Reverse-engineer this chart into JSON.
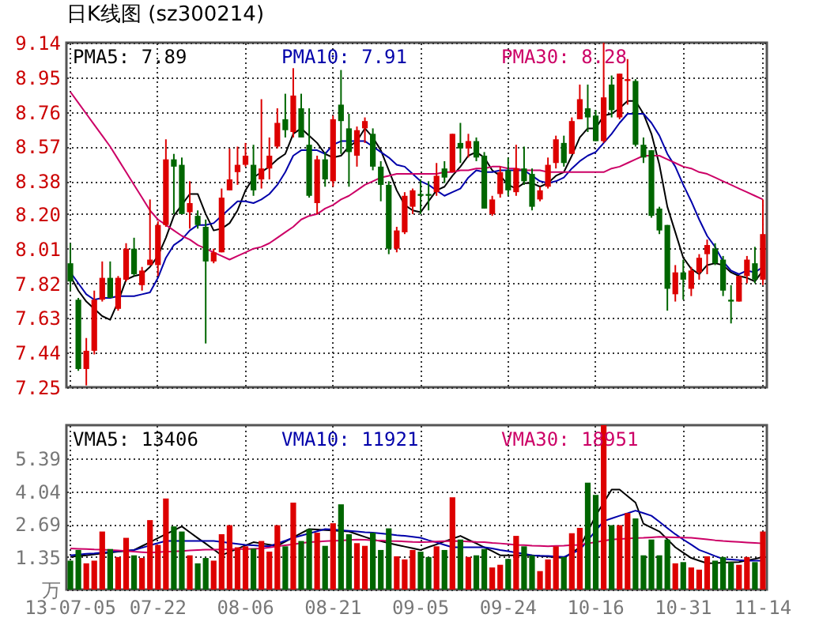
{
  "chart_data": [
    {
      "type": "candlestick",
      "title": "日K线图 (sz300214)",
      "categories": [
        null,
        null,
        null,
        null,
        null,
        null,
        null,
        null,
        null,
        null,
        null,
        null,
        null,
        null,
        null,
        null,
        null,
        null,
        null,
        null,
        null,
        null,
        null,
        null,
        null,
        null,
        null,
        null,
        null,
        null,
        null,
        null,
        null,
        null,
        null,
        null,
        null,
        null,
        null,
        null,
        null,
        null,
        null,
        null,
        null,
        null,
        null,
        null,
        null,
        null,
        null,
        null,
        null,
        null,
        null,
        null,
        null,
        null,
        null,
        null,
        null,
        null,
        null,
        null,
        null,
        null,
        null,
        null,
        null,
        null,
        null,
        null,
        null,
        null,
        null,
        null,
        null,
        null,
        null,
        null,
        null,
        null,
        null,
        null,
        null,
        null,
        null,
        null
      ],
      "ohlc": [
        [
          7.93,
          8.04,
          7.78,
          7.83
        ],
        [
          7.73,
          7.74,
          7.34,
          7.35
        ],
        [
          7.35,
          7.52,
          7.26,
          7.45
        ],
        [
          7.45,
          7.78,
          7.43,
          7.73
        ],
        [
          7.73,
          7.94,
          7.72,
          7.85
        ],
        [
          7.85,
          7.94,
          7.74,
          7.74
        ],
        [
          7.68,
          7.86,
          7.67,
          7.85
        ],
        [
          7.84,
          8.04,
          7.83,
          8.01
        ],
        [
          8.01,
          8.07,
          7.86,
          7.87
        ],
        [
          7.81,
          7.91,
          7.78,
          7.89
        ],
        [
          7.92,
          8.28,
          7.92,
          7.95
        ],
        [
          7.92,
          8.16,
          7.86,
          8.14
        ],
        [
          8.14,
          8.61,
          8.13,
          8.5
        ],
        [
          8.5,
          8.53,
          8.2,
          8.46
        ],
        [
          8.47,
          8.51,
          8.2,
          8.2
        ],
        [
          8.21,
          8.38,
          8.12,
          8.26
        ],
        [
          8.19,
          8.22,
          8.12,
          8.14
        ],
        [
          8.13,
          8.17,
          7.49,
          7.94
        ],
        [
          7.94,
          8.01,
          7.93,
          7.99
        ],
        [
          7.99,
          8.34,
          7.99,
          8.29
        ],
        [
          8.33,
          8.56,
          8.33,
          8.39
        ],
        [
          8.43,
          8.57,
          8.36,
          8.47
        ],
        [
          8.47,
          8.59,
          8.46,
          8.52
        ],
        [
          8.47,
          8.58,
          8.3,
          8.33
        ],
        [
          8.39,
          8.83,
          8.34,
          8.45
        ],
        [
          8.45,
          8.62,
          8.39,
          8.52
        ],
        [
          8.57,
          8.78,
          8.56,
          8.7
        ],
        [
          8.72,
          8.86,
          8.62,
          8.66
        ],
        [
          8.65,
          9.0,
          8.62,
          8.85
        ],
        [
          8.78,
          8.86,
          8.62,
          8.62
        ],
        [
          8.58,
          8.78,
          8.29,
          8.3
        ],
        [
          8.26,
          8.52,
          8.2,
          8.5
        ],
        [
          8.5,
          8.54,
          8.35,
          8.39
        ],
        [
          8.38,
          8.74,
          8.35,
          8.72
        ],
        [
          8.8,
          8.99,
          8.53,
          8.71
        ],
        [
          8.67,
          8.75,
          8.35,
          8.54
        ],
        [
          8.52,
          8.68,
          8.46,
          8.66
        ],
        [
          8.67,
          8.73,
          8.59,
          8.71
        ],
        [
          8.64,
          8.67,
          8.44,
          8.46
        ],
        [
          8.46,
          8.49,
          8.27,
          8.36
        ],
        [
          8.36,
          8.38,
          7.98,
          8.01
        ],
        [
          8.01,
          8.13,
          7.99,
          8.11
        ],
        [
          8.1,
          8.32,
          8.09,
          8.3
        ],
        [
          8.24,
          8.34,
          8.2,
          8.33
        ],
        [
          8.31,
          8.39,
          8.2,
          8.3
        ],
        [
          8.31,
          8.38,
          8.22,
          8.3
        ],
        [
          8.32,
          8.48,
          8.3,
          8.41
        ],
        [
          8.45,
          8.49,
          8.37,
          8.4
        ],
        [
          8.43,
          8.64,
          8.43,
          8.64
        ],
        [
          8.59,
          8.7,
          8.48,
          8.56
        ],
        [
          8.56,
          8.64,
          8.51,
          8.6
        ],
        [
          8.6,
          8.62,
          8.49,
          8.51
        ],
        [
          8.52,
          8.54,
          8.23,
          8.23
        ],
        [
          8.2,
          8.3,
          8.19,
          8.28
        ],
        [
          8.31,
          8.46,
          8.29,
          8.43
        ],
        [
          8.44,
          8.51,
          8.3,
          8.33
        ],
        [
          8.32,
          8.58,
          8.3,
          8.45
        ],
        [
          8.45,
          8.57,
          8.36,
          8.38
        ],
        [
          8.42,
          8.45,
          8.22,
          8.24
        ],
        [
          8.28,
          8.35,
          8.27,
          8.33
        ],
        [
          8.35,
          8.51,
          8.34,
          8.47
        ],
        [
          8.48,
          8.63,
          8.45,
          8.61
        ],
        [
          8.59,
          8.63,
          8.46,
          8.48
        ],
        [
          8.53,
          8.73,
          8.53,
          8.71
        ],
        [
          8.72,
          8.91,
          8.72,
          8.83
        ],
        [
          8.78,
          8.91,
          8.65,
          8.73
        ],
        [
          8.74,
          8.77,
          8.6,
          8.6
        ],
        [
          8.6,
          9.14,
          8.59,
          8.84
        ],
        [
          8.91,
          8.96,
          8.73,
          8.77
        ],
        [
          8.73,
          8.97,
          8.72,
          8.97
        ],
        [
          8.93,
          9.05,
          8.8,
          8.94
        ],
        [
          8.93,
          8.94,
          8.57,
          8.58
        ],
        [
          8.58,
          8.62,
          8.48,
          8.51
        ],
        [
          8.55,
          8.55,
          8.18,
          8.19
        ],
        [
          8.23,
          8.24,
          8.09,
          8.11
        ],
        [
          8.14,
          8.14,
          7.67,
          7.79
        ],
        [
          7.76,
          7.92,
          7.72,
          7.88
        ],
        [
          7.88,
          7.95,
          7.73,
          7.84
        ],
        [
          7.79,
          7.91,
          7.75,
          7.89
        ],
        [
          7.88,
          7.98,
          7.84,
          7.96
        ],
        [
          7.98,
          8.06,
          7.87,
          8.03
        ],
        [
          8.01,
          8.04,
          7.92,
          7.93
        ],
        [
          7.95,
          7.97,
          7.75,
          7.78
        ],
        [
          7.73,
          7.81,
          7.6,
          7.72
        ],
        [
          7.72,
          7.86,
          7.72,
          7.86
        ],
        [
          7.86,
          7.97,
          7.82,
          7.95
        ],
        [
          7.93,
          8.02,
          7.82,
          7.84
        ],
        [
          7.84,
          8.28,
          7.81,
          8.09
        ]
      ],
      "colors": [
        "#006600",
        "#006600",
        "#dd0000",
        "#dd0000",
        "#dd0000",
        "#006600",
        "#dd0000",
        "#dd0000",
        "#006600",
        "#dd0000",
        "#dd0000",
        "#dd0000",
        "#dd0000",
        "#006600",
        "#006600",
        "#dd0000",
        "#006600",
        "#006600",
        "#dd0000",
        "#dd0000",
        "#dd0000",
        "#dd0000",
        "#dd0000",
        "#006600",
        "#dd0000",
        "#dd0000",
        "#dd0000",
        "#006600",
        "#dd0000",
        "#006600",
        "#006600",
        "#dd0000",
        "#006600",
        "#dd0000",
        "#006600",
        "#006600",
        "#dd0000",
        "#dd0000",
        "#006600",
        "#006600",
        "#006600",
        "#dd0000",
        "#dd0000",
        "#dd0000",
        "#006600",
        "#006600",
        "#dd0000",
        "#006600",
        "#dd0000",
        "#006600",
        "#dd0000",
        "#006600",
        "#006600",
        "#dd0000",
        "#dd0000",
        "#006600",
        "#dd0000",
        "#006600",
        "#006600",
        "#dd0000",
        "#dd0000",
        "#dd0000",
        "#006600",
        "#dd0000",
        "#dd0000",
        "#006600",
        "#006600",
        "#dd0000",
        "#006600",
        "#dd0000",
        "#dd0000",
        "#006600",
        "#006600",
        "#006600",
        "#006600",
        "#006600",
        "#dd0000",
        "#006600",
        "#dd0000",
        "#dd0000",
        "#dd0000",
        "#006600",
        "#006600",
        "#006600",
        "#dd0000",
        "#dd0000",
        "#006600",
        "#dd0000"
      ],
      "series": [
        {
          "type": "line",
          "name": "PMA5: 7.89",
          "color": "#000000",
          "values": [
            7.86,
            7.78,
            7.72,
            7.68,
            7.64,
            7.62,
            7.72,
            7.84,
            7.86,
            7.87,
            7.91,
            7.97,
            8.07,
            8.19,
            8.25,
            8.31,
            8.31,
            8.2,
            8.11,
            8.12,
            8.15,
            8.22,
            8.33,
            8.4,
            8.43,
            8.46,
            8.5,
            8.53,
            8.64,
            8.67,
            8.63,
            8.59,
            8.53,
            8.51,
            8.52,
            8.57,
            8.6,
            8.67,
            8.62,
            8.55,
            8.44,
            8.33,
            8.25,
            8.22,
            8.21,
            8.27,
            8.33,
            8.35,
            8.41,
            8.46,
            8.52,
            8.54,
            8.51,
            8.44,
            8.41,
            8.36,
            8.34,
            8.37,
            8.37,
            8.35,
            8.37,
            8.41,
            8.43,
            8.52,
            8.62,
            8.67,
            8.67,
            8.74,
            8.75,
            8.78,
            8.82,
            8.82,
            8.75,
            8.64,
            8.47,
            8.24,
            8.1,
            7.96,
            7.9,
            7.87,
            7.92,
            7.93,
            7.92,
            7.88,
            7.86,
            7.85,
            7.83,
            7.89
          ]
        },
        {
          "type": "line",
          "name": "PMA10: 7.91",
          "color": "#0000aa",
          "values": [
            7.88,
            7.82,
            7.76,
            7.73,
            7.74,
            7.74,
            7.75,
            7.75,
            7.75,
            7.76,
            7.77,
            7.85,
            7.96,
            8.03,
            8.06,
            8.11,
            8.14,
            8.14,
            8.15,
            8.19,
            8.23,
            8.27,
            8.27,
            8.26,
            8.28,
            8.31,
            8.36,
            8.43,
            8.52,
            8.55,
            8.55,
            8.55,
            8.53,
            8.58,
            8.6,
            8.6,
            8.6,
            8.6,
            8.57,
            8.54,
            8.51,
            8.47,
            8.46,
            8.42,
            8.38,
            8.36,
            8.33,
            8.3,
            8.32,
            8.34,
            8.4,
            8.44,
            8.43,
            8.43,
            8.44,
            8.44,
            8.44,
            8.44,
            8.41,
            8.38,
            8.37,
            8.38,
            8.4,
            8.45,
            8.49,
            8.52,
            8.54,
            8.59,
            8.64,
            8.7,
            8.75,
            8.75,
            8.75,
            8.7,
            8.63,
            8.53,
            8.46,
            8.36,
            8.27,
            8.17,
            8.08,
            8.02,
            7.94,
            7.89,
            7.87,
            7.89,
            7.88,
            7.91
          ]
        },
        {
          "type": "line",
          "name": "PMA30: 8.28",
          "color": "#cc0066",
          "values": [
            8.87,
            8.81,
            8.75,
            8.69,
            8.63,
            8.57,
            8.5,
            8.43,
            8.36,
            8.29,
            8.22,
            8.17,
            8.14,
            8.11,
            8.08,
            8.06,
            8.03,
            8.01,
            7.99,
            7.97,
            7.95,
            7.97,
            7.99,
            8.01,
            8.02,
            8.04,
            8.07,
            8.1,
            8.13,
            8.17,
            8.19,
            8.2,
            8.23,
            8.25,
            8.28,
            8.3,
            8.33,
            8.36,
            8.38,
            8.4,
            8.41,
            8.42,
            8.42,
            8.42,
            8.42,
            8.42,
            8.42,
            8.43,
            8.43,
            8.44,
            8.44,
            8.45,
            8.45,
            8.46,
            8.46,
            8.45,
            8.45,
            8.44,
            8.44,
            8.44,
            8.43,
            8.43,
            8.43,
            8.43,
            8.43,
            8.43,
            8.43,
            8.43,
            8.45,
            8.46,
            8.48,
            8.5,
            8.52,
            8.52,
            8.52,
            8.5,
            8.48,
            8.46,
            8.45,
            8.43,
            8.42,
            8.4,
            8.38,
            8.36,
            8.34,
            8.32,
            8.3,
            8.28
          ]
        }
      ],
      "ylim": [
        7.25,
        9.14
      ],
      "yticks": [
        7.25,
        7.44,
        7.63,
        7.82,
        8.01,
        {
          "value": 8.2,
          "label": "8.20"
        },
        8.38,
        8.57,
        8.76,
        8.95,
        9.14
      ],
      "grid": true,
      "legend": "top",
      "tick_labels": "y"
    },
    {
      "type": "bar",
      "categories": [
        "13-07-05",
        null,
        null,
        null,
        null,
        null,
        null,
        null,
        null,
        null,
        null,
        "07-22",
        null,
        null,
        null,
        null,
        null,
        null,
        null,
        null,
        null,
        null,
        "08-06",
        null,
        null,
        null,
        null,
        null,
        null,
        null,
        null,
        null,
        null,
        "08-21",
        null,
        null,
        null,
        null,
        null,
        null,
        null,
        null,
        null,
        null,
        "09-05",
        null,
        null,
        null,
        null,
        null,
        null,
        null,
        null,
        null,
        null,
        "09-24",
        null,
        null,
        null,
        null,
        null,
        null,
        null,
        null,
        null,
        null,
        "10-16",
        null,
        null,
        null,
        null,
        null,
        null,
        null,
        null,
        null,
        null,
        "10-31",
        null,
        null,
        null,
        null,
        null,
        null,
        null,
        null,
        null,
        "11-14"
      ],
      "values": [
        1.19,
        1.63,
        1.08,
        1.19,
        2.39,
        1.67,
        1.34,
        2.13,
        1.41,
        1.3,
        2.86,
        1.84,
        3.75,
        2.6,
        2.39,
        1.41,
        1.08,
        1.3,
        1.19,
        2.28,
        2.65,
        1.74,
        1.78,
        1.69,
        2.0,
        1.56,
        2.65,
        1.78,
        3.58,
        2.0,
        2.49,
        2.34,
        1.8,
        2.73,
        3.51,
        2.28,
        1.91,
        1.8,
        2.34,
        1.63,
        2.52,
        1.37,
        1.24,
        1.63,
        1.56,
        1.34,
        1.78,
        1.63,
        3.8,
        2.06,
        1.34,
        1.41,
        1.67,
        0.91,
        1.02,
        1.26,
        2.21,
        1.78,
        1.41,
        0.76,
        1.24,
        1.78,
        1.34,
        2.32,
        2.54,
        4.4,
        3.9,
        6.77,
        2.65,
        2.65,
        3.15,
        2.93,
        1.41,
        2.06,
        1.41,
        2.06,
        1.08,
        1.13,
        0.91,
        0.82,
        1.37,
        1.19,
        1.34,
        1.13,
        1.02,
        1.34,
        1.13,
        2.39
      ],
      "colors": [
        "#006600",
        "#006600",
        "#dd0000",
        "#dd0000",
        "#dd0000",
        "#006600",
        "#dd0000",
        "#dd0000",
        "#006600",
        "#dd0000",
        "#dd0000",
        "#dd0000",
        "#dd0000",
        "#006600",
        "#006600",
        "#dd0000",
        "#006600",
        "#006600",
        "#dd0000",
        "#dd0000",
        "#dd0000",
        "#dd0000",
        "#dd0000",
        "#006600",
        "#dd0000",
        "#dd0000",
        "#dd0000",
        "#006600",
        "#dd0000",
        "#006600",
        "#006600",
        "#dd0000",
        "#006600",
        "#dd0000",
        "#006600",
        "#006600",
        "#dd0000",
        "#dd0000",
        "#006600",
        "#006600",
        "#006600",
        "#dd0000",
        "#dd0000",
        "#dd0000",
        "#006600",
        "#006600",
        "#dd0000",
        "#006600",
        "#dd0000",
        "#006600",
        "#dd0000",
        "#006600",
        "#006600",
        "#dd0000",
        "#dd0000",
        "#006600",
        "#dd0000",
        "#006600",
        "#006600",
        "#dd0000",
        "#dd0000",
        "#dd0000",
        "#006600",
        "#dd0000",
        "#dd0000",
        "#006600",
        "#006600",
        "#dd0000",
        "#006600",
        "#dd0000",
        "#dd0000",
        "#006600",
        "#006600",
        "#006600",
        "#006600",
        "#006600",
        "#dd0000",
        "#006600",
        "#dd0000",
        "#dd0000",
        "#dd0000",
        "#006600",
        "#006600",
        "#006600",
        "#dd0000",
        "#dd0000",
        "#006600",
        "#dd0000"
      ],
      "series": [
        {
          "type": "line",
          "name": "VMA5: 13406",
          "color": "#000000",
          "values": [
            1.34,
            1.38,
            1.41,
            1.45,
            1.49,
            1.52,
            1.56,
            1.59,
            1.63,
            1.79,
            1.95,
            2.12,
            2.28,
            2.44,
            2.6,
            2.36,
            2.12,
            1.89,
            1.65,
            1.41,
            1.55,
            1.68,
            1.82,
            1.95,
            1.9,
            1.85,
            1.8,
            1.97,
            2.15,
            2.32,
            2.49,
            2.47,
            2.45,
            2.43,
            2.41,
            2.39,
            2.28,
            2.17,
            2.06,
            1.99,
            1.91,
            1.84,
            1.77,
            1.7,
            1.63,
            1.75,
            1.86,
            1.98,
            2.09,
            2.21,
            2.05,
            1.9,
            1.74,
            1.58,
            1.41,
            1.41,
            1.41,
            1.41,
            1.41,
            1.38,
            1.36,
            1.33,
            1.3,
            1.52,
            1.74,
            2.39,
            3.04,
            3.58,
            4.12,
            4.12,
            3.85,
            3.58,
            2.71,
            2.55,
            2.39,
            2.07,
            1.74,
            1.52,
            1.3,
            1.19,
            1.08,
            1.09,
            1.11,
            1.12,
            1.13,
            1.2,
            1.26,
            1.34
          ]
        },
        {
          "type": "line",
          "name": "VMA10: 11921",
          "color": "#0000aa",
          "values": [
            1.41,
            1.44,
            1.47,
            1.49,
            1.52,
            1.55,
            1.58,
            1.6,
            1.63,
            1.72,
            1.82,
            1.91,
            2.0,
            2.0,
            2.0,
            2.0,
            2.0,
            2.0,
            2.0,
            1.96,
            1.92,
            1.88,
            1.84,
            1.82,
            1.8,
            1.78,
            1.9,
            2.01,
            2.13,
            2.22,
            2.31,
            2.4,
            2.49,
            2.47,
            2.44,
            2.42,
            2.39,
            2.36,
            2.34,
            2.31,
            2.28,
            2.24,
            2.21,
            2.17,
            2.13,
            2.03,
            1.94,
            1.84,
            1.74,
            1.74,
            1.74,
            1.74,
            1.74,
            1.69,
            1.63,
            1.58,
            1.52,
            1.47,
            1.41,
            1.39,
            1.38,
            1.36,
            1.34,
            1.49,
            1.63,
            2.03,
            2.42,
            2.82,
            2.93,
            3.04,
            3.14,
            3.25,
            3.15,
            3.04,
            2.79,
            2.53,
            2.28,
            2.06,
            1.85,
            1.63,
            1.51,
            1.38,
            1.26,
            1.24,
            1.21,
            1.19,
            1.19,
            1.19
          ]
        },
        {
          "type": "line",
          "name": "VMA30: 18951",
          "color": "#cc0066",
          "values": [
            1.69,
            1.68,
            1.67,
            1.65,
            1.64,
            1.63,
            1.61,
            1.59,
            1.56,
            1.54,
            1.52,
            1.54,
            1.56,
            1.57,
            1.59,
            1.61,
            1.63,
            1.64,
            1.64,
            1.65,
            1.66,
            1.67,
            1.67,
            1.68,
            1.69,
            1.73,
            1.78,
            1.82,
            1.86,
            1.91,
            1.95,
            1.97,
            1.99,
            2.01,
            2.02,
            2.04,
            2.06,
            2.05,
            2.03,
            2.02,
            2.0,
            1.99,
            1.98,
            1.96,
            1.95,
            1.96,
            1.98,
            1.99,
            2.0,
            1.99,
            1.98,
            1.96,
            1.95,
            1.92,
            1.9,
            1.87,
            1.84,
            1.83,
            1.81,
            1.8,
            1.78,
            1.8,
            1.81,
            1.83,
            1.84,
            1.9,
            1.95,
            2.01,
            2.06,
            2.08,
            2.1,
            2.12,
            2.13,
            2.15,
            2.17,
            2.16,
            2.15,
            2.14,
            2.13,
            2.1,
            2.07,
            2.03,
            2.0,
            1.98,
            1.96,
            1.94,
            1.92,
            1.9
          ]
        }
      ],
      "ylim": [
        0,
        6.77
      ],
      "yticks": [
        {
          "value": 0,
          "label": "万"
        },
        1.35,
        2.69,
        4.04,
        5.39
      ],
      "grid": true,
      "legend": "top"
    }
  ]
}
